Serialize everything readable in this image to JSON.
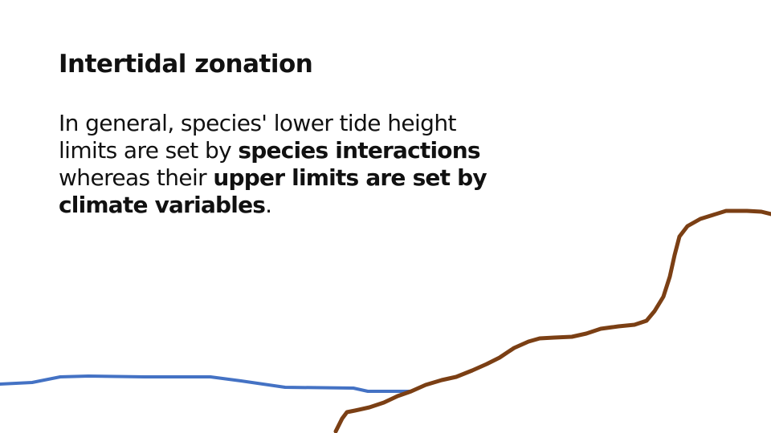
{
  "slide": {
    "title": "Intertidal zonation",
    "body": {
      "part1": "In general, species' lower tide height limits are set by ",
      "part2": "species interactions",
      "part3": " whereas their ",
      "part4": "upper limits are set by climate variables",
      "part5": "."
    }
  },
  "colors": {
    "water_line": "#4472c4",
    "shore_line": "#7b3f14",
    "text": "#111111",
    "background": "#ffffff"
  }
}
